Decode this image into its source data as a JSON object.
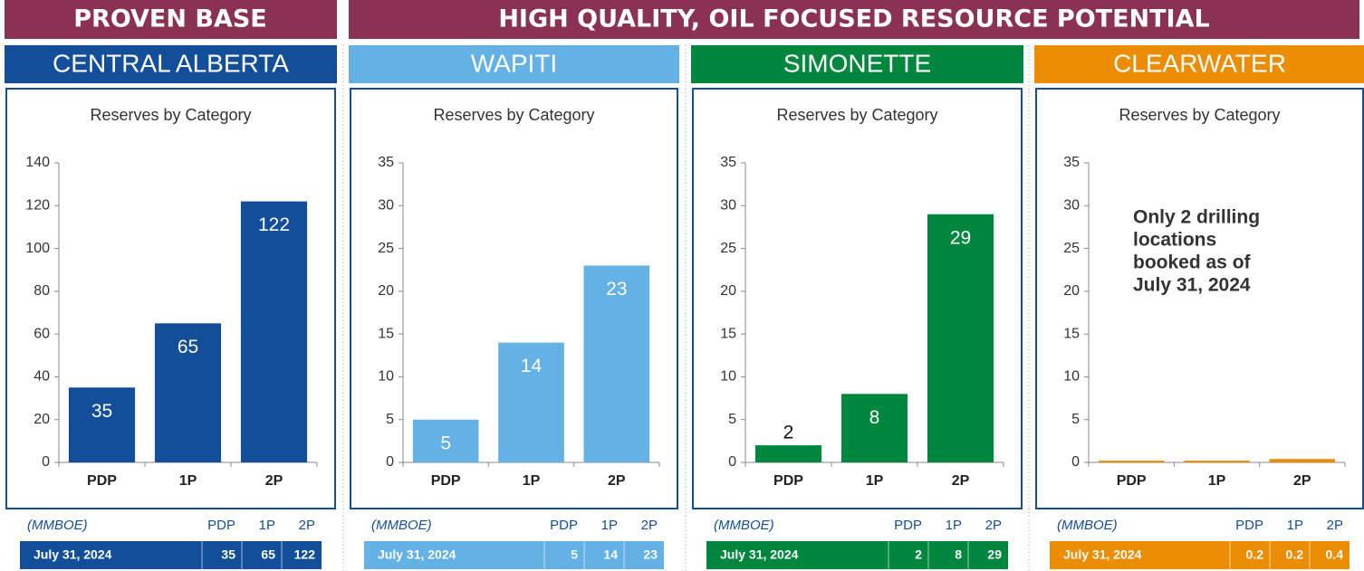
{
  "headers": [
    "PROVEN BASE",
    "HIGH QUALITY, OIL FOCUSED RESOURCE POTENTIAL"
  ],
  "chart_data": [
    {
      "type": "bar",
      "region": "CENTRAL ALBERTA",
      "title": "Reserves by Category",
      "color": "#124e99",
      "categories": [
        "PDP",
        "1P",
        "2P"
      ],
      "values": [
        35,
        65,
        122
      ],
      "data_labels": true,
      "ylim": [
        0,
        140
      ],
      "yticks": [
        0,
        20,
        40,
        60,
        80,
        100,
        120,
        140
      ],
      "grid": false,
      "table": {
        "unit": "(MMBOE)",
        "header": [
          "PDP",
          "1P",
          "2P"
        ],
        "row_label": "July 31, 2024",
        "values": [
          35,
          65,
          122
        ]
      }
    },
    {
      "type": "bar",
      "region": "WAPITI",
      "title": "Reserves by Category",
      "color": "#63b1e5",
      "categories": [
        "PDP",
        "1P",
        "2P"
      ],
      "values": [
        5,
        14,
        23
      ],
      "data_labels": true,
      "ylim": [
        0,
        35
      ],
      "yticks": [
        0,
        5,
        10,
        15,
        20,
        25,
        30,
        35
      ],
      "grid": false,
      "table": {
        "unit": "(MMBOE)",
        "header": [
          "PDP",
          "1P",
          "2P"
        ],
        "row_label": "July 31, 2024",
        "values": [
          5,
          14,
          23
        ]
      }
    },
    {
      "type": "bar",
      "region": "SIMONETTE",
      "title": "Reserves by Category",
      "color": "#00873e",
      "categories": [
        "PDP",
        "1P",
        "2P"
      ],
      "values": [
        2,
        8,
        29
      ],
      "data_labels": true,
      "ylim": [
        0,
        35
      ],
      "yticks": [
        0,
        5,
        10,
        15,
        20,
        25,
        30,
        35
      ],
      "grid": false,
      "table": {
        "unit": "(MMBOE)",
        "header": [
          "PDP",
          "1P",
          "2P"
        ],
        "row_label": "July 31, 2024",
        "values": [
          2,
          8,
          29
        ]
      }
    },
    {
      "type": "bar",
      "region": "CLEARWATER",
      "title": "Reserves by Category",
      "color": "#ec8c00",
      "categories": [
        "PDP",
        "1P",
        "2P"
      ],
      "values": [
        0.2,
        0.2,
        0.4
      ],
      "data_labels": false,
      "annotation": [
        "Only 2 drilling",
        "locations",
        "booked as of",
        "July 31, 2024"
      ],
      "ylim": [
        0,
        35
      ],
      "yticks": [
        0,
        5,
        10,
        15,
        20,
        25,
        30,
        35
      ],
      "grid": false,
      "table": {
        "unit": "(MMBOE)",
        "header": [
          "PDP",
          "1P",
          "2P"
        ],
        "row_label": "July 31, 2024",
        "values": [
          0.2,
          0.2,
          0.4
        ]
      }
    }
  ]
}
